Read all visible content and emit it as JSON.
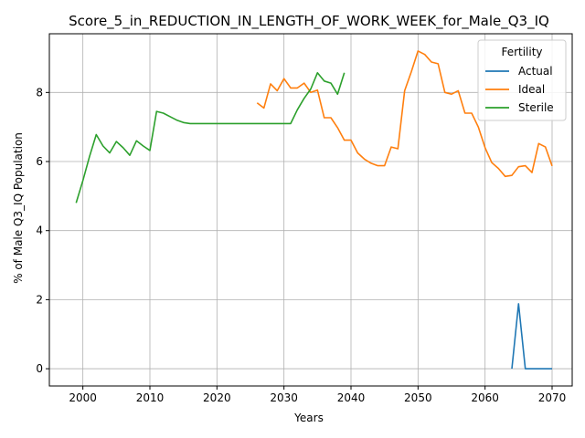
{
  "chart_data": {
    "type": "line",
    "title": "Score_5_in_REDUCTION_IN_LENGTH_OF_WORK_WEEK_for_Male_Q3_IQ",
    "xlabel": "Years",
    "ylabel": "% of Male Q3_IQ Population",
    "xlim": [
      1995,
      2073
    ],
    "ylim": [
      -0.5,
      9.7
    ],
    "x_ticks": [
      2000,
      2010,
      2020,
      2030,
      2040,
      2050,
      2060,
      2070
    ],
    "y_ticks": [
      0,
      2,
      4,
      6,
      8
    ],
    "grid": true,
    "legend": {
      "title": "Fertility",
      "placement": "top-right",
      "entries": [
        "Actual",
        "Ideal",
        "Sterile"
      ]
    },
    "colors": {
      "Actual": "#1f77b4",
      "Ideal": "#ff7f0e",
      "Sterile": "#2ca02c"
    },
    "series": [
      {
        "name": "Actual",
        "points": [
          [
            2064,
            0.0
          ],
          [
            2065,
            1.88
          ],
          [
            2066,
            0.0
          ],
          [
            2067,
            0.0
          ],
          [
            2068,
            0.0
          ],
          [
            2069,
            0.0
          ],
          [
            2070,
            0.0
          ]
        ]
      },
      {
        "name": "Ideal",
        "points": [
          [
            2026,
            7.7
          ],
          [
            2027,
            7.55
          ],
          [
            2028,
            8.25
          ],
          [
            2029,
            8.05
          ],
          [
            2030,
            8.4
          ],
          [
            2031,
            8.13
          ],
          [
            2032,
            8.13
          ],
          [
            2033,
            8.27
          ],
          [
            2034,
            8.0
          ],
          [
            2035,
            8.07
          ],
          [
            2036,
            7.27
          ],
          [
            2037,
            7.27
          ],
          [
            2038,
            6.98
          ],
          [
            2039,
            6.62
          ],
          [
            2040,
            6.62
          ],
          [
            2041,
            6.25
          ],
          [
            2042,
            6.07
          ],
          [
            2043,
            5.95
          ],
          [
            2044,
            5.88
          ],
          [
            2045,
            5.88
          ],
          [
            2046,
            6.42
          ],
          [
            2047,
            6.37
          ],
          [
            2048,
            8.05
          ],
          [
            2049,
            8.6
          ],
          [
            2050,
            9.2
          ],
          [
            2051,
            9.1
          ],
          [
            2052,
            8.88
          ],
          [
            2053,
            8.83
          ],
          [
            2054,
            8.0
          ],
          [
            2055,
            7.95
          ],
          [
            2056,
            8.05
          ],
          [
            2057,
            7.4
          ],
          [
            2058,
            7.4
          ],
          [
            2059,
            7.0
          ],
          [
            2060,
            6.4
          ],
          [
            2061,
            5.97
          ],
          [
            2062,
            5.8
          ],
          [
            2063,
            5.57
          ],
          [
            2064,
            5.6
          ],
          [
            2065,
            5.85
          ],
          [
            2066,
            5.88
          ],
          [
            2067,
            5.68
          ],
          [
            2068,
            6.52
          ],
          [
            2069,
            6.42
          ],
          [
            2070,
            5.87
          ]
        ]
      },
      {
        "name": "Sterile",
        "points": [
          [
            1999,
            4.8
          ],
          [
            2000,
            5.45
          ],
          [
            2001,
            6.15
          ],
          [
            2002,
            6.78
          ],
          [
            2003,
            6.45
          ],
          [
            2004,
            6.25
          ],
          [
            2005,
            6.58
          ],
          [
            2006,
            6.4
          ],
          [
            2007,
            6.18
          ],
          [
            2008,
            6.6
          ],
          [
            2009,
            6.45
          ],
          [
            2010,
            6.32
          ],
          [
            2011,
            7.45
          ],
          [
            2012,
            7.4
          ],
          [
            2013,
            7.3
          ],
          [
            2014,
            7.2
          ],
          [
            2015,
            7.13
          ],
          [
            2016,
            7.1
          ],
          [
            2017,
            7.1
          ],
          [
            2018,
            7.1
          ],
          [
            2019,
            7.1
          ],
          [
            2020,
            7.1
          ],
          [
            2021,
            7.1
          ],
          [
            2022,
            7.1
          ],
          [
            2023,
            7.1
          ],
          [
            2024,
            7.1
          ],
          [
            2025,
            7.1
          ],
          [
            2026,
            7.1
          ],
          [
            2027,
            7.1
          ],
          [
            2028,
            7.1
          ],
          [
            2029,
            7.1
          ],
          [
            2030,
            7.1
          ],
          [
            2031,
            7.1
          ],
          [
            2032,
            7.5
          ],
          [
            2033,
            7.83
          ],
          [
            2034,
            8.1
          ],
          [
            2035,
            8.57
          ],
          [
            2036,
            8.33
          ],
          [
            2037,
            8.27
          ],
          [
            2038,
            7.95
          ],
          [
            2039,
            8.57
          ]
        ]
      }
    ]
  }
}
